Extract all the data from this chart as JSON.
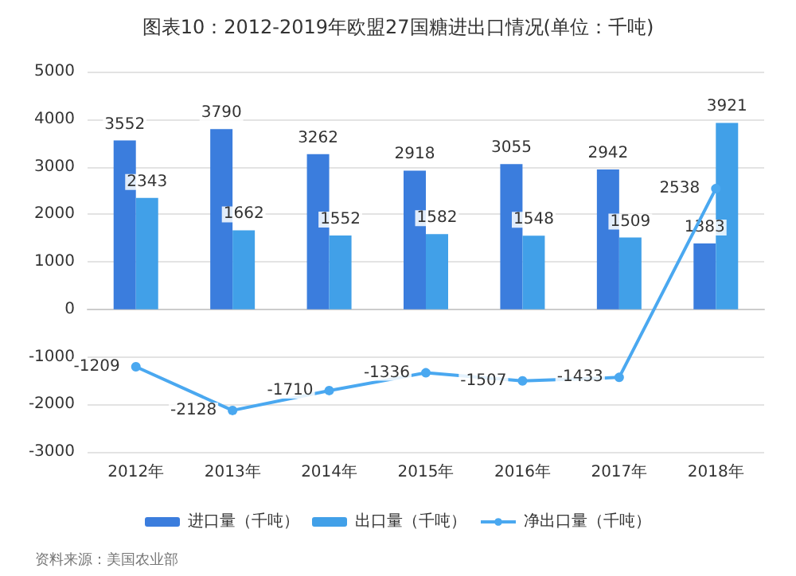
{
  "chart_data": {
    "type": "bar",
    "title": "图表10：2012-2019年欧盟27国糖进出口情况(单位：千吨)",
    "categories": [
      "2012年",
      "2013年",
      "2014年",
      "2015年",
      "2016年",
      "2017年",
      "2018年"
    ],
    "series": [
      {
        "name": "进口量（千吨）",
        "color": "#3b7ddd",
        "values": [
          3552,
          3790,
          3262,
          2918,
          3055,
          2942,
          1383
        ]
      },
      {
        "name": "出口量（千吨）",
        "color": "#41a0e8",
        "values": [
          2343,
          1662,
          1552,
          1582,
          1548,
          1509,
          3921
        ]
      },
      {
        "name": "净出口量（千吨）",
        "type": "line",
        "color": "#4aa8f0",
        "values": [
          -1209,
          -2128,
          -1710,
          -1336,
          -1507,
          -1433,
          2538
        ]
      }
    ],
    "ylim": [
      -3000,
      5000
    ],
    "yticks": [
      -3000,
      -2000,
      -1000,
      0,
      1000,
      2000,
      3000,
      4000,
      5000
    ],
    "grid": "y",
    "legend": "bottom",
    "data_labels": true,
    "marker": "circle",
    "annotations": [
      "资料来源：美国农业部"
    ]
  }
}
